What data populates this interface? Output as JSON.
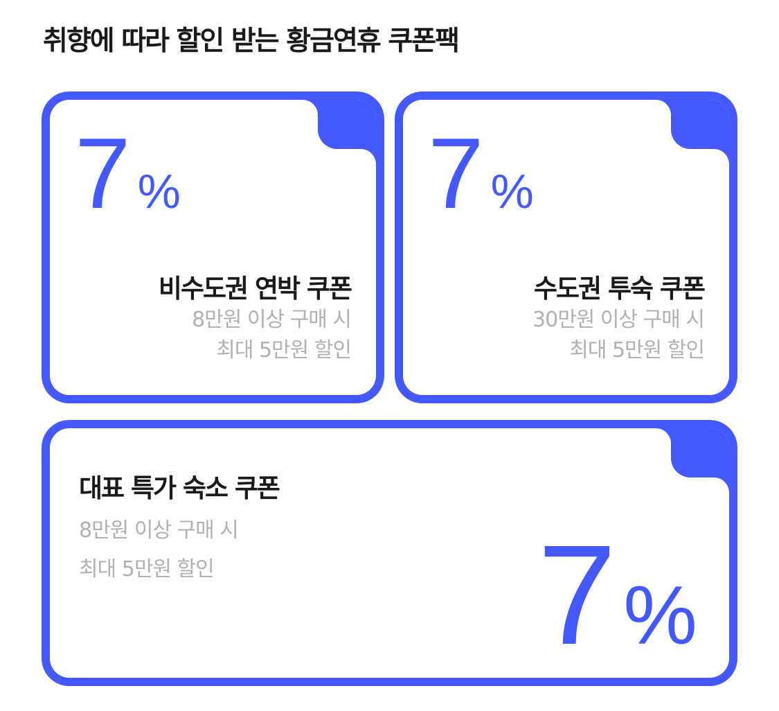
{
  "title": "취향에 따라 할인 받는 황금연휴 쿠폰팩",
  "accent_color": "#4458ff",
  "coupons": [
    {
      "value": "7",
      "unit": "%",
      "name": "비수도권 연박 쿠폰",
      "condition": "8만원 이상 구매 시",
      "benefit": "최대 5만원 할인"
    },
    {
      "value": "7",
      "unit": "%",
      "name": "수도권 투숙 쿠폰",
      "condition": "30만원 이상 구매 시",
      "benefit": "최대 5만원 할인"
    },
    {
      "value": "7",
      "unit": "%",
      "name": "대표 특가 숙소 쿠폰",
      "condition": "8만원 이상 구매 시",
      "benefit": "최대 5만원 할인"
    }
  ]
}
